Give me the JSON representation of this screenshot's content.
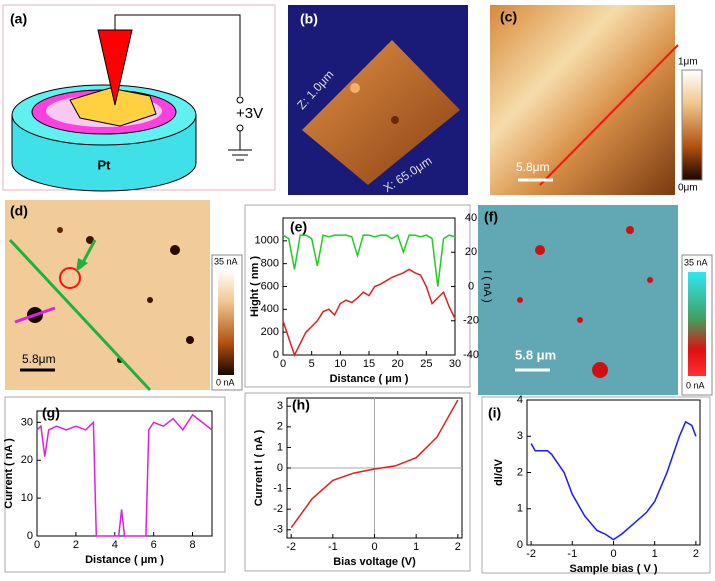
{
  "panels": {
    "a": {
      "label": "(a)",
      "electrode": "Pt",
      "voltage": "+3V"
    },
    "b": {
      "label": "(b)",
      "z_scale": "Z: 1.0μm",
      "x_scale": "X: 65.0μm"
    },
    "c": {
      "label": "(c)",
      "scale_max": "1μm",
      "scale_min": "0μm",
      "scale_bar": "5.8μm"
    },
    "d": {
      "label": "(d)",
      "scale_max": "35 nA",
      "scale_min": "0 nA",
      "scale_bar": "5.8μm"
    },
    "f": {
      "label": "(f)",
      "scale_max": "35 nA",
      "scale_min": "0 nA",
      "scale_bar": "5.8 μm"
    }
  },
  "chart_data": [
    {
      "type": "line",
      "label": "(e)",
      "xlabel": "Distance ( μm )",
      "ylabel": "Hight ( nm )",
      "y2label": "I ( nA )",
      "x": [
        0,
        1,
        2,
        3,
        4,
        5,
        6,
        7,
        8,
        9,
        10,
        11,
        12,
        13,
        14,
        15,
        16,
        17,
        18,
        19,
        20,
        21,
        22,
        23,
        24,
        25,
        26,
        27,
        28,
        29,
        30
      ],
      "series": [
        {
          "name": "Height",
          "color": "#e02020",
          "values": [
            300,
            150,
            0,
            100,
            200,
            250,
            300,
            380,
            400,
            350,
            450,
            480,
            460,
            500,
            550,
            520,
            600,
            620,
            650,
            680,
            700,
            720,
            750,
            720,
            700,
            600,
            450,
            500,
            550,
            420,
            320
          ]
        },
        {
          "name": "Current",
          "color": "#22cc22",
          "axis": "y2",
          "values": [
            30,
            28,
            10,
            30,
            30,
            28,
            12,
            30,
            29,
            30,
            30,
            30,
            29,
            18,
            30,
            30,
            29,
            30,
            30,
            28,
            30,
            20,
            30,
            30,
            29,
            30,
            28,
            0,
            28,
            30,
            29
          ]
        }
      ],
      "xlim": [
        0,
        30
      ],
      "xticks": [
        0,
        5,
        10,
        15,
        20,
        25,
        30
      ],
      "ylim": [
        0,
        1200
      ],
      "yticks": [
        0,
        200,
        400,
        600,
        800,
        1000
      ],
      "y2lim": [
        -40,
        40
      ],
      "y2ticks": [
        -40,
        -20,
        0,
        20,
        40
      ]
    },
    {
      "type": "line",
      "label": "(g)",
      "xlabel": "Distance ( μm )",
      "ylabel": "Current ( nA )",
      "x": [
        0,
        0.2,
        0.4,
        0.6,
        1,
        1.5,
        2,
        2.5,
        2.9,
        3.05,
        3.5,
        4,
        4.2,
        4.35,
        4.5,
        5,
        5.6,
        5.75,
        6,
        6.5,
        7,
        7.5,
        8,
        8.5,
        9
      ],
      "series": [
        {
          "name": "Current",
          "color": "#e020e0",
          "values": [
            28,
            29,
            21,
            28,
            29,
            28,
            29,
            28,
            30,
            0,
            0,
            0,
            0,
            7,
            0,
            0,
            0,
            28,
            30,
            29,
            31,
            28,
            32,
            30,
            28
          ]
        }
      ],
      "xlim": [
        0,
        9
      ],
      "xticks": [
        0,
        2,
        4,
        6,
        8
      ],
      "ylim": [
        0,
        33
      ],
      "yticks": [
        0,
        10,
        20,
        30
      ]
    },
    {
      "type": "line",
      "label": "(h)",
      "xlabel": "Bias voltage (V)",
      "ylabel": "Current I ( nA )",
      "x": [
        -2,
        -1.5,
        -1,
        -0.5,
        0,
        0.5,
        1,
        1.5,
        2
      ],
      "series": [
        {
          "name": "Current",
          "color": "#e02020",
          "values": [
            -2.9,
            -1.5,
            -0.6,
            -0.25,
            -0.05,
            0.1,
            0.5,
            1.5,
            3.3
          ]
        }
      ],
      "xlim": [
        -2.1,
        2.1
      ],
      "xticks": [
        -2,
        -1,
        0,
        1,
        2
      ],
      "ylim": [
        -3.4,
        3.4
      ],
      "yticks": [
        -3,
        -2,
        -1,
        0,
        1,
        2,
        3
      ]
    },
    {
      "type": "line",
      "label": "(i)",
      "xlabel": "Sample bias ( V )",
      "ylabel": "dI/dV",
      "x": [
        -2,
        -1.9,
        -1.6,
        -1.5,
        -1.2,
        -1,
        -0.7,
        -0.4,
        -0.2,
        0,
        0.2,
        0.5,
        0.8,
        1,
        1.3,
        1.6,
        1.75,
        1.9,
        2
      ],
      "series": [
        {
          "name": "dI/dV",
          "color": "#1a1aff",
          "values": [
            2.8,
            2.6,
            2.6,
            2.5,
            2.0,
            1.4,
            0.8,
            0.4,
            0.3,
            0.15,
            0.3,
            0.6,
            0.9,
            1.2,
            2.0,
            3.0,
            3.4,
            3.3,
            3.0
          ]
        }
      ],
      "xlim": [
        -2.1,
        2.1
      ],
      "xticks": [
        -2,
        -1,
        0,
        1,
        2
      ],
      "ylim": [
        0,
        4
      ],
      "yticks": [
        0,
        1,
        2,
        3,
        4
      ]
    }
  ]
}
